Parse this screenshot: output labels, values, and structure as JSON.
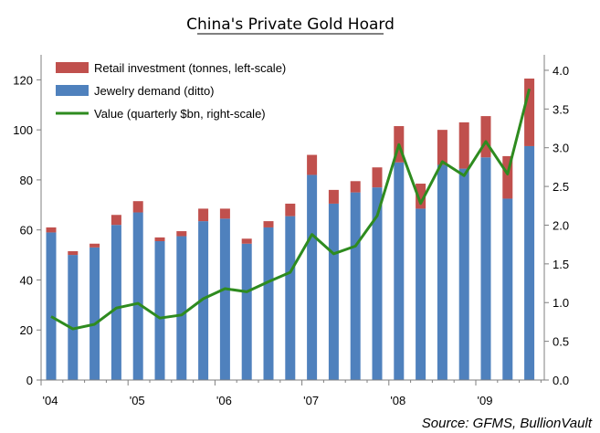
{
  "chart_data": {
    "type": "bar",
    "title": "China's Private Gold Hoard",
    "source": "Source: GFMS, BullionVault",
    "x_tick_labels": [
      "'04",
      "'05",
      "'06",
      "'07",
      "'08",
      "'09"
    ],
    "quarters_per_year": 4,
    "left_axis": {
      "ylim": [
        0,
        130
      ],
      "ticks": [
        0,
        20,
        40,
        60,
        80,
        100,
        120
      ]
    },
    "right_axis": {
      "ylim": [
        0,
        4.2
      ],
      "ticks": [
        "0.0",
        "0.5",
        "1.0",
        "1.5",
        "2.0",
        "2.5",
        "3.0",
        "3.5",
        "4.0"
      ]
    },
    "series": [
      {
        "name": "Retail investment (tonnes, left-scale)",
        "kind": "stacked-bar-top",
        "axis": "left",
        "color": "#c0504d",
        "values": [
          2,
          1.5,
          1.5,
          4,
          4.5,
          1.5,
          2,
          5,
          4,
          2,
          2.5,
          5,
          8,
          5.5,
          4.5,
          8,
          14.5,
          10,
          14,
          18.5,
          16.5,
          17,
          27
        ]
      },
      {
        "name": "Jewelry demand (ditto)",
        "kind": "stacked-bar-base",
        "axis": "left",
        "color": "#4f81bd",
        "values": [
          59,
          50,
          53,
          62,
          67,
          55.5,
          57.5,
          63.5,
          64.5,
          54.5,
          61,
          65.5,
          82,
          70.5,
          75,
          77,
          87,
          68.5,
          86,
          84.5,
          89,
          72.5,
          93.5
        ]
      },
      {
        "name": "Value (quarterly $bn, right-scale)",
        "kind": "line",
        "axis": "right",
        "color": "#2e8b1f",
        "values": [
          0.82,
          0.66,
          0.72,
          0.93,
          0.99,
          0.8,
          0.84,
          1.05,
          1.18,
          1.14,
          1.27,
          1.39,
          1.88,
          1.63,
          1.73,
          2.12,
          3.04,
          2.28,
          2.82,
          2.64,
          3.08,
          2.66,
          3.76
        ]
      }
    ],
    "legend_position": "top-left"
  }
}
